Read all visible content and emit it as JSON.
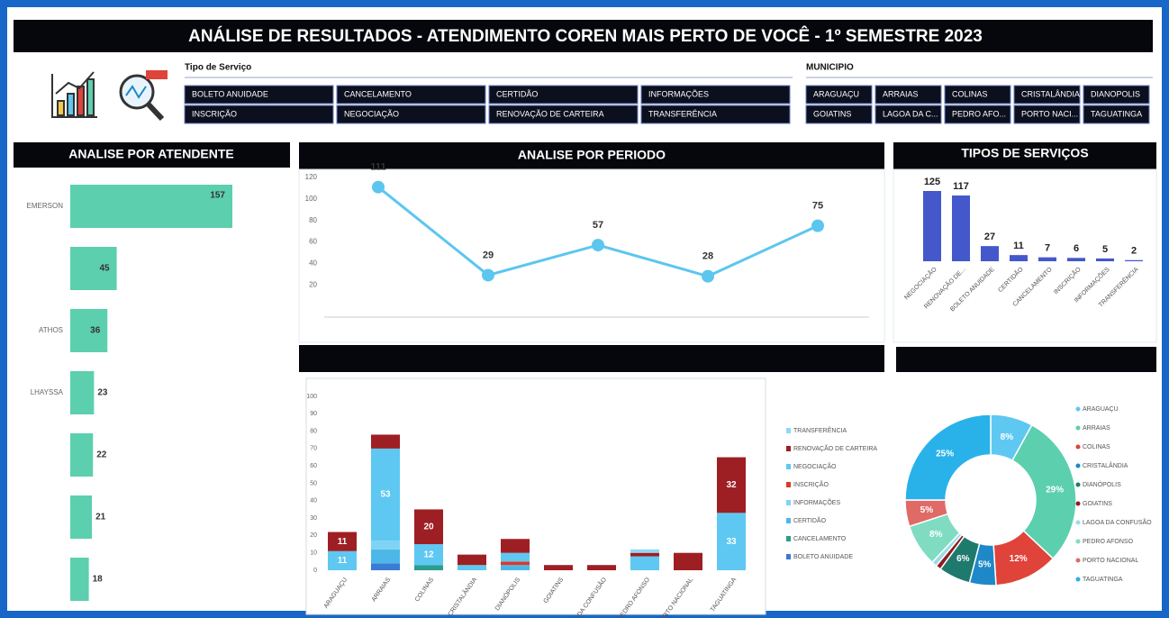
{
  "header": {
    "title": "ANÁLISE DE RESULTADOS - ATENDIMENTO COREN MAIS PERTO DE VOCÊ - 1º SEMESTRE 2023"
  },
  "slicers": {
    "service": {
      "label": "Tipo de Serviço",
      "items": [
        "BOLETO ANUIDADE",
        "CANCELAMENTO",
        "CERTIDÃO",
        "INFORMAÇÕES",
        "INSCRIÇÃO",
        "NEGOCIAÇÃO",
        "RENOVAÇÃO DE CARTEIRA",
        "TRANSFERÊNCIA"
      ]
    },
    "municipio": {
      "label": "MUNICIPIO",
      "items": [
        "ARAGUAÇU",
        "ARRAIAS",
        "COLINAS",
        "CRISTALÂNDIA",
        "DIANOPOLIS",
        "GOIATINS",
        "LAGOA DA C...",
        "PEDRO AFO...",
        "PORTO NACI...",
        "TAGUATINGA"
      ]
    }
  },
  "chart_data": [
    {
      "type": "hbar",
      "title": "ANALISE POR ATENDENTE",
      "categories": [
        "EMERSON",
        null,
        "ATHOS",
        "LHAYSSA",
        null,
        null,
        null
      ],
      "values": [
        157,
        45,
        36,
        23,
        22,
        21,
        18
      ],
      "color": "#5ccfae"
    },
    {
      "type": "line",
      "title": "ANALISE POR PERIODO",
      "categories": [
        null,
        null,
        null,
        null,
        null
      ],
      "values": [
        111,
        29,
        57,
        28,
        75
      ],
      "color": "#5cc6ef",
      "ylim": [
        0,
        120
      ],
      "yticks": [
        20,
        40,
        60,
        80,
        100,
        120
      ]
    },
    {
      "type": "bar",
      "title": "TIPOS DE SERVIÇOS",
      "categories": [
        "NEGOCIAÇÃO",
        "RENOVAÇÃO DE...",
        "BOLETO ANUIDADE",
        "CERTIDÃO",
        "CANCELAMENTO",
        "INSCRIÇÃO",
        "INFORMAÇÕES",
        "TRANSFERÊNCIA"
      ],
      "values": [
        125,
        117,
        27,
        11,
        7,
        6,
        5,
        2
      ],
      "color": "#4458cc"
    },
    {
      "type": "stacked_bar",
      "categories": [
        "ARAGUAÇU",
        "ARRAIAS",
        "COLINAS",
        "CRISTALÂNDIA",
        "DIANÓPOLIS",
        "GOIATINS",
        "LAGOA DA CONFUSÃO",
        "PEDRO AFONSO",
        "PORTO NACIONAL",
        "TAGUATINGA"
      ],
      "ylim": [
        0,
        100
      ],
      "yticks": [
        0,
        10,
        20,
        30,
        40,
        50,
        60,
        70,
        80,
        90,
        100
      ],
      "series": [
        {
          "name": "TRANSFERÊNCIA",
          "color": "#8fd8f5",
          "values": [
            0,
            0,
            0,
            0,
            0,
            0,
            0,
            2,
            0,
            0
          ]
        },
        {
          "name": "RENOVAÇÃO DE CARTEIRA",
          "color": "#9e1f23",
          "values": [
            11,
            8,
            20,
            6,
            8,
            3,
            3,
            2,
            10,
            32
          ]
        },
        {
          "name": "NEGOCIAÇÃO",
          "color": "#5ec8f2",
          "values": [
            11,
            53,
            12,
            3,
            5,
            0,
            0,
            8,
            0,
            33
          ]
        },
        {
          "name": "INSCRIÇÃO",
          "color": "#d93a2b",
          "values": [
            0,
            0,
            0,
            0,
            2,
            0,
            0,
            0,
            0,
            0
          ]
        },
        {
          "name": "INFORMAÇÕES",
          "color": "#7fd3f5",
          "values": [
            0,
            5,
            0,
            0,
            0,
            0,
            0,
            0,
            0,
            0
          ]
        },
        {
          "name": "CERTIDÃO",
          "color": "#4db8e8",
          "values": [
            0,
            8,
            0,
            0,
            3,
            0,
            0,
            0,
            0,
            0
          ]
        },
        {
          "name": "CANCELAMENTO",
          "color": "#2a9d8f",
          "values": [
            0,
            0,
            3,
            0,
            0,
            0,
            0,
            0,
            0,
            0
          ]
        },
        {
          "name": "BOLETO ANUIDADE",
          "color": "#3a7bd5",
          "values": [
            0,
            4,
            0,
            0,
            0,
            0,
            0,
            0,
            0,
            0
          ]
        }
      ]
    },
    {
      "type": "donut",
      "categories": [
        "ARAGUAÇU",
        "ARRAIAS",
        "COLINAS",
        "CRISTALÂNDIA",
        "DIANÓPOLIS",
        "GOIATINS",
        "LAGOA DA CONFUSÃO",
        "PEDRO AFONSO",
        "PORTO NACIONAL",
        "TAGUATINGA"
      ],
      "values": [
        8,
        29,
        12,
        5,
        6,
        1,
        1,
        8,
        5,
        25
      ],
      "value_labels": [
        "8%",
        "29%",
        "12%",
        "5%",
        "6%",
        null,
        null,
        "8%",
        "5%",
        "25%"
      ],
      "colors": [
        "#5ec8f2",
        "#5ccfae",
        "#e0433a",
        "#1e88c8",
        "#1f7a6e",
        "#8b1e22",
        "#9adbe8",
        "#7fdcc0",
        "#e06a66",
        "#29b2ea"
      ]
    }
  ]
}
